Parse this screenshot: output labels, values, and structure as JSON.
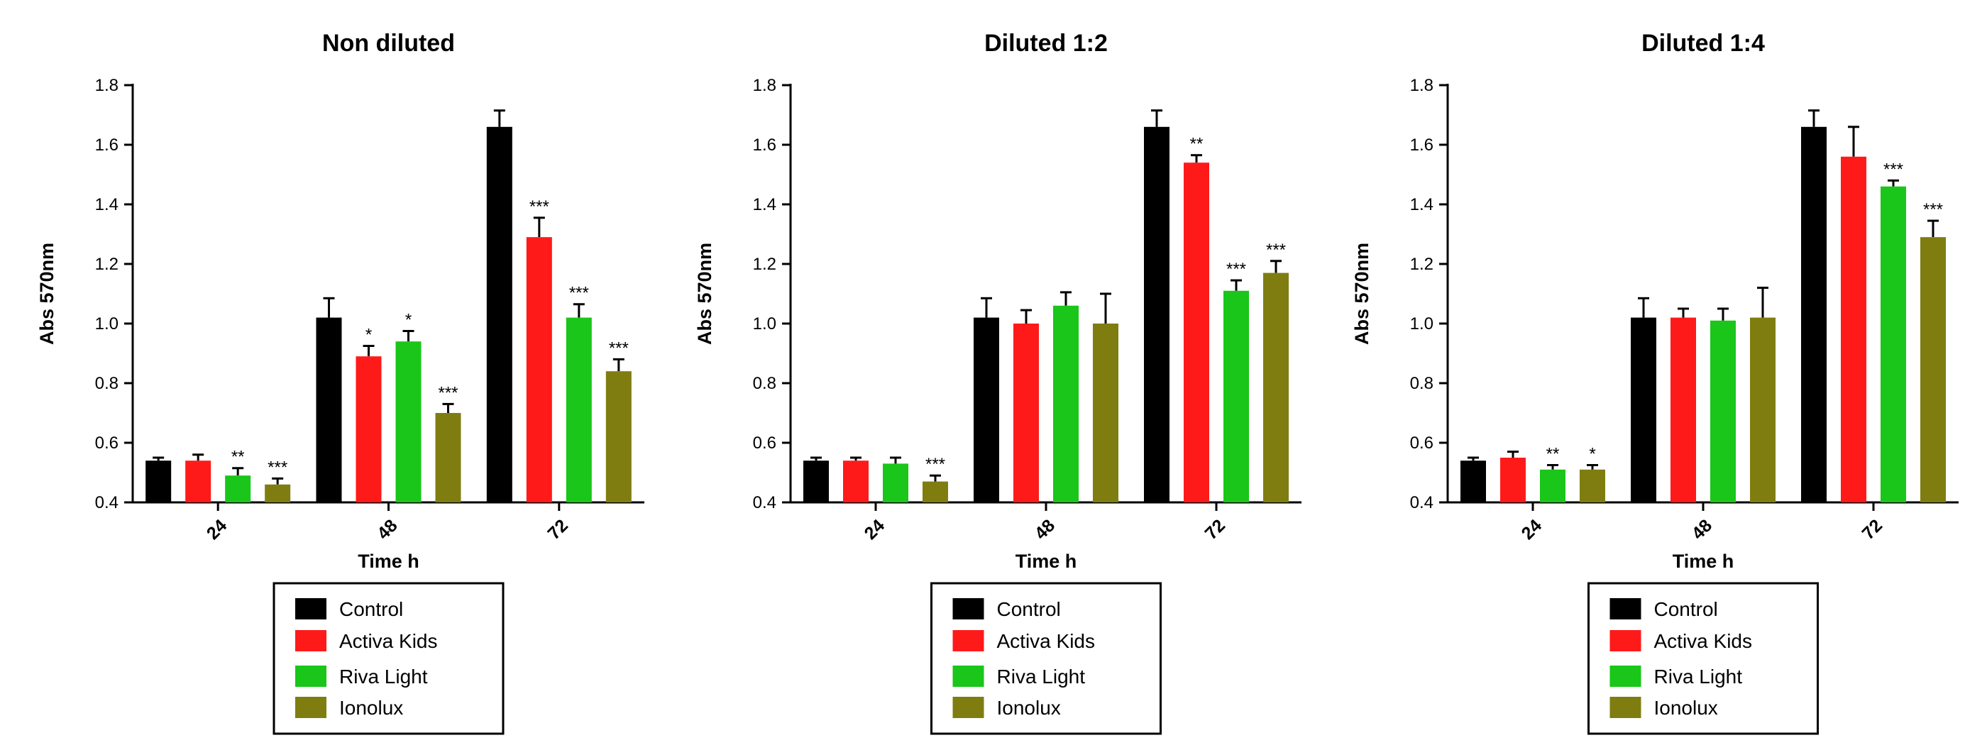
{
  "colors": {
    "Control": "#000000",
    "Activa Kids": "#ff1a1a",
    "Riva Light": "#19c619",
    "Ionolux": "#7f7d10"
  },
  "chart_data": [
    {
      "type": "bar",
      "title": "Non diluted",
      "xlabel": "Time h",
      "ylabel": "Abs 570nm",
      "ylim": [
        0.4,
        1.8
      ],
      "yticks": [
        "0.4",
        "0.6",
        "0.8",
        "1.0",
        "1.2",
        "1.4",
        "1.6",
        "1.8"
      ],
      "categories": [
        "24",
        "48",
        "72"
      ],
      "legend_position": "below",
      "series": [
        {
          "name": "Control",
          "values": [
            0.54,
            1.02,
            1.66
          ],
          "errors": [
            0.01,
            0.065,
            0.055
          ],
          "significance": [
            "",
            "",
            ""
          ]
        },
        {
          "name": "Activa Kids",
          "values": [
            0.54,
            0.89,
            1.29
          ],
          "errors": [
            0.02,
            0.035,
            0.065
          ],
          "significance": [
            "",
            "*",
            "***"
          ]
        },
        {
          "name": "Riva Light",
          "values": [
            0.49,
            0.94,
            1.02
          ],
          "errors": [
            0.025,
            0.035,
            0.045
          ],
          "significance": [
            "**",
            "*",
            "***"
          ]
        },
        {
          "name": "Ionolux",
          "values": [
            0.46,
            0.7,
            0.84
          ],
          "errors": [
            0.02,
            0.03,
            0.04
          ],
          "significance": [
            "***",
            "***",
            "***"
          ]
        }
      ]
    },
    {
      "type": "bar",
      "title": "Diluted 1:2",
      "xlabel": "Time h",
      "ylabel": "Abs 570nm",
      "ylim": [
        0.4,
        1.8
      ],
      "yticks": [
        "0.4",
        "0.6",
        "0.8",
        "1.0",
        "1.2",
        "1.4",
        "1.6",
        "1.8"
      ],
      "categories": [
        "24",
        "48",
        "72"
      ],
      "legend_position": "below",
      "series": [
        {
          "name": "Control",
          "values": [
            0.54,
            1.02,
            1.66
          ],
          "errors": [
            0.01,
            0.065,
            0.055
          ],
          "significance": [
            "",
            "",
            ""
          ]
        },
        {
          "name": "Activa Kids",
          "values": [
            0.54,
            1.0,
            1.54
          ],
          "errors": [
            0.01,
            0.045,
            0.025
          ],
          "significance": [
            "",
            "",
            "**"
          ]
        },
        {
          "name": "Riva Light",
          "values": [
            0.53,
            1.06,
            1.11
          ],
          "errors": [
            0.02,
            0.045,
            0.035
          ],
          "significance": [
            "",
            "",
            "***"
          ]
        },
        {
          "name": "Ionolux",
          "values": [
            0.47,
            1.0,
            1.17
          ],
          "errors": [
            0.02,
            0.1,
            0.04
          ],
          "significance": [
            "***",
            "",
            "***"
          ]
        }
      ]
    },
    {
      "type": "bar",
      "title": "Diluted 1:4",
      "xlabel": "Time h",
      "ylabel": "Abs 570nm",
      "ylim": [
        0.4,
        1.8
      ],
      "yticks": [
        "0.4",
        "0.6",
        "0.8",
        "1.0",
        "1.2",
        "1.4",
        "1.6",
        "1.8"
      ],
      "categories": [
        "24",
        "48",
        "72"
      ],
      "legend_position": "below",
      "series": [
        {
          "name": "Control",
          "values": [
            0.54,
            1.02,
            1.66
          ],
          "errors": [
            0.01,
            0.065,
            0.055
          ],
          "significance": [
            "",
            "",
            ""
          ]
        },
        {
          "name": "Activa Kids",
          "values": [
            0.55,
            1.02,
            1.56
          ],
          "errors": [
            0.02,
            0.03,
            0.1
          ],
          "significance": [
            "",
            "",
            ""
          ]
        },
        {
          "name": "Riva Light",
          "values": [
            0.51,
            1.01,
            1.46
          ],
          "errors": [
            0.015,
            0.04,
            0.02
          ],
          "significance": [
            "**",
            "",
            "***"
          ]
        },
        {
          "name": "Ionolux",
          "values": [
            0.51,
            1.02,
            1.29
          ],
          "errors": [
            0.015,
            0.1,
            0.055
          ],
          "significance": [
            "*",
            "",
            "***"
          ]
        }
      ]
    }
  ]
}
